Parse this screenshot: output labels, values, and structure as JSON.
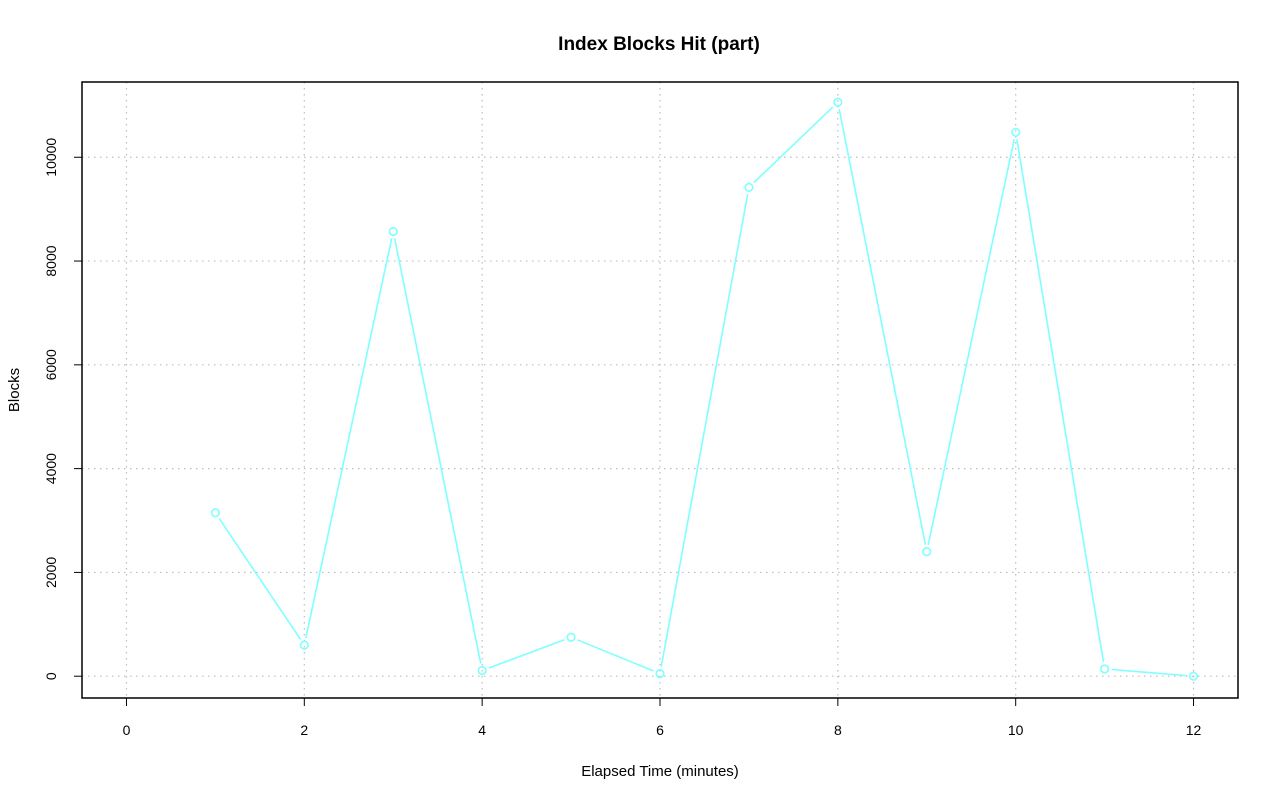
{
  "chart_data": {
    "type": "line",
    "title": "Index Blocks Hit (part)",
    "xlabel": "Elapsed Time (minutes)",
    "ylabel": "Blocks",
    "xlim": [
      -0.5,
      12.5
    ],
    "ylim": [
      -420,
      11450
    ],
    "xticks": [
      0,
      2,
      4,
      6,
      8,
      10,
      12
    ],
    "yticks": [
      0,
      2000,
      4000,
      6000,
      8000,
      10000
    ],
    "grid": true,
    "line_color": "#7fffff",
    "series": [
      {
        "x": [
          1,
          2,
          3,
          4,
          5,
          6,
          7,
          8,
          9,
          10,
          11,
          12
        ],
        "y": [
          3150,
          600,
          8570,
          110,
          750,
          50,
          9420,
          11060,
          2400,
          10480,
          140,
          0
        ]
      }
    ]
  }
}
